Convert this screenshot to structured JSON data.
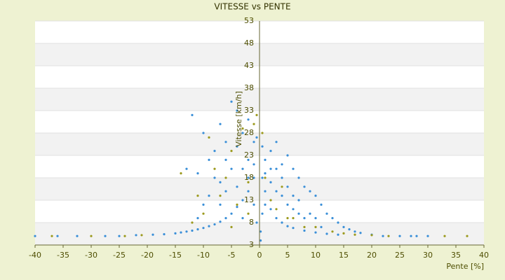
{
  "chart_data": {
    "type": "scatter",
    "title": "VITESSE vs PENTE",
    "x_label": "Pente [%]",
    "y_label": "Vitesse [km/h]",
    "xlim": [
      -40,
      40
    ],
    "xticks": [
      -40,
      -35,
      -30,
      -25,
      -20,
      -15,
      -10,
      -5,
      0,
      5,
      10,
      15,
      20,
      25,
      30,
      35,
      40
    ],
    "ylim": [
      3,
      53
    ],
    "yticks": [
      3,
      8,
      13,
      18,
      23,
      28,
      33,
      38,
      43,
      48,
      53
    ],
    "grid": true,
    "series": [
      {
        "color": "#3a8fd8",
        "x": [
          -40,
          -36,
          -32.5,
          -27.5,
          -25,
          -22,
          -19,
          -17,
          -15,
          -14,
          -13,
          -12,
          -11,
          -10,
          -9,
          -8,
          -7,
          -6,
          -5,
          -4,
          -3,
          -2,
          -1,
          -12,
          -10,
          -9,
          -11,
          -8,
          -7,
          -6,
          -5,
          -4,
          -5,
          -6,
          -7,
          -8,
          -9,
          -4,
          -3,
          -2,
          -1,
          -3,
          -2,
          -1,
          -0.5,
          -0.5,
          -13,
          -10,
          -11,
          -3,
          -4,
          -2,
          -1,
          -6,
          -7,
          0.5,
          1,
          2,
          3,
          4,
          5,
          6,
          7,
          8,
          9,
          10,
          11,
          12,
          13,
          14,
          15,
          16,
          17,
          18,
          20,
          22,
          25,
          27,
          28,
          30,
          1,
          2,
          3,
          4,
          5,
          6,
          8,
          10,
          12,
          14,
          1,
          2,
          3,
          4,
          5,
          6,
          7,
          8,
          9,
          3,
          4,
          5,
          6,
          2,
          1,
          0.5,
          0.5,
          7,
          10,
          11,
          0.2,
          0.2
        ],
        "values": [
          5,
          5,
          5,
          5,
          5,
          5.2,
          5.3,
          5.4,
          5.6,
          5.8,
          6,
          6.2,
          6.5,
          6.8,
          7.2,
          7.6,
          8.2,
          9,
          10,
          11.5,
          13,
          15,
          18,
          32,
          28,
          22,
          19,
          24,
          30,
          26,
          35,
          33,
          20,
          15,
          12,
          18,
          14,
          25,
          28,
          31,
          26,
          20,
          22,
          12,
          8,
          27,
          20,
          12,
          9,
          9,
          16,
          18,
          21,
          22,
          17,
          25,
          22,
          24,
          26,
          21,
          23,
          20,
          18,
          16,
          15,
          14,
          12,
          10,
          9,
          8,
          7,
          6.5,
          6,
          5.7,
          5.3,
          5,
          5,
          5,
          5,
          5,
          15,
          11,
          9,
          8,
          7.2,
          6.8,
          6.2,
          5.8,
          5.5,
          5.3,
          19,
          17,
          15,
          14,
          12,
          11,
          10,
          9,
          10,
          20,
          18,
          16,
          14,
          20,
          12,
          10,
          18,
          13,
          9,
          7,
          4,
          6
        ]
      },
      {
        "color": "#9c9a1e",
        "x": [
          -37,
          -30,
          -24,
          -21,
          -12,
          -10,
          -9,
          -8,
          -6,
          -5,
          -4,
          -3,
          -2,
          -1,
          -0.5,
          -7,
          -11,
          -5,
          1,
          2,
          3,
          4,
          5,
          6,
          8,
          10,
          13,
          15,
          17,
          20,
          23,
          33,
          37,
          -14,
          -2,
          0.5
        ],
        "values": [
          5,
          5,
          5,
          5.2,
          8,
          10,
          27,
          20,
          18,
          24,
          12,
          29,
          17,
          30,
          32,
          14,
          14,
          7,
          18,
          13,
          11,
          16,
          9,
          9,
          7,
          7,
          6,
          5.6,
          5.3,
          5.2,
          5,
          5,
          5,
          19,
          10,
          28
        ]
      }
    ]
  }
}
